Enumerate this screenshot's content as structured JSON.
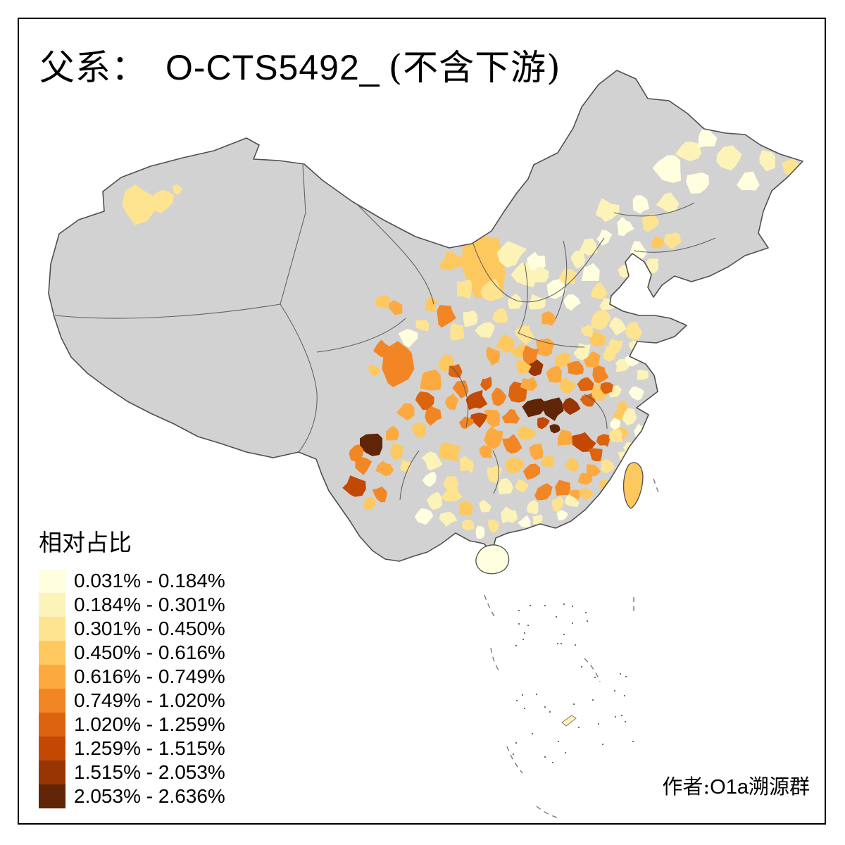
{
  "title": {
    "prefix": "父系：",
    "haplogroup": "O-CTS5492_",
    "suffix": "(不含下游)"
  },
  "legend": {
    "title": "相对占比",
    "items": [
      {
        "label": "0.031% - 0.184%",
        "color": "#FFFFDF"
      },
      {
        "label": "0.184% - 0.301%",
        "color": "#FCF3B8"
      },
      {
        "label": "0.301% - 0.450%",
        "color": "#FEE391"
      },
      {
        "label": "0.450% - 0.616%",
        "color": "#FDC95F"
      },
      {
        "label": "0.616% - 0.749%",
        "color": "#FCAA3F"
      },
      {
        "label": "0.749% - 1.020%",
        "color": "#F38624"
      },
      {
        "label": "1.020% - 1.259%",
        "color": "#DC640F"
      },
      {
        "label": "1.259% - 1.515%",
        "color": "#C34803"
      },
      {
        "label": "1.515% - 2.053%",
        "color": "#993503"
      },
      {
        "label": "2.053% - 2.636%",
        "color": "#5F2506"
      }
    ]
  },
  "attribution": {
    "prefix": "作者:",
    "name": "O1a",
    "suffix": "溯源群"
  },
  "map": {
    "no_data_color": "#D2D2D2",
    "boundary_color": "#4F4F4F",
    "sea_color": "#FFFFFF"
  }
}
